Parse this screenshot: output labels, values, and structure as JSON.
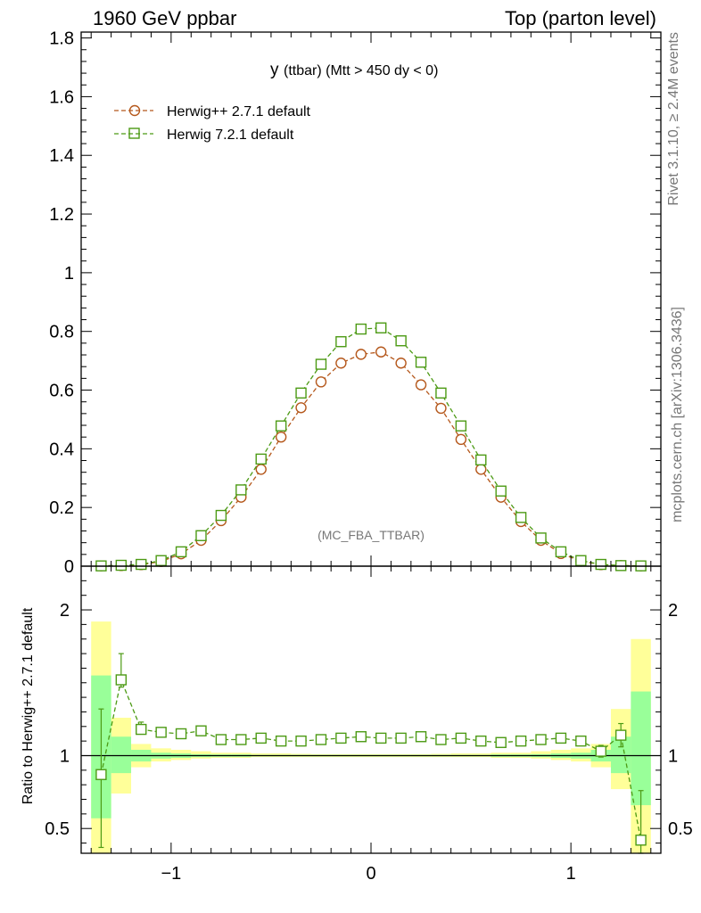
{
  "header": {
    "left": "1960 GeV ppbar",
    "right": "Top (parton level)"
  },
  "side_labels": {
    "rivet": "Rivet 3.1.10, ≥ 2.4M events",
    "mcplots": "mcplots.cern.ch [arXiv:1306.3436]"
  },
  "chart_data": [
    {
      "type": "line",
      "title_main": "y",
      "title_rest": "(ttbar) (Mtt > 450 dy < 0)",
      "watermark": "(MC_FBA_TTBAR)",
      "xlim": [
        -1.45,
        1.45
      ],
      "ylim": [
        0,
        1.82
      ],
      "y_ticks": [
        0.2,
        0.4,
        0.6,
        0.8,
        1,
        1.2,
        1.4,
        1.6,
        1.8
      ],
      "y_tick_labels": [
        "0",
        "0.2",
        "0.4",
        "0.6",
        "0.8",
        "1",
        "1.2",
        "1.4",
        "1.6",
        "1.8"
      ],
      "x": [
        -1.35,
        -1.25,
        -1.15,
        -1.05,
        -0.95,
        -0.85,
        -0.75,
        -0.65,
        -0.55,
        -0.45,
        -0.35,
        -0.25,
        -0.15,
        -0.05,
        0.05,
        0.15,
        0.25,
        0.35,
        0.45,
        0.55,
        0.65,
        0.75,
        0.85,
        0.95,
        1.05,
        1.15,
        1.25,
        1.35
      ],
      "series": [
        {
          "name": "Herwig++ 2.7.1 default",
          "color": "#b5581c",
          "marker": "circle",
          "values": [
            0.001,
            0.002,
            0.005,
            0.016,
            0.042,
            0.088,
            0.155,
            0.235,
            0.33,
            0.44,
            0.54,
            0.628,
            0.692,
            0.722,
            0.73,
            0.692,
            0.618,
            0.538,
            0.432,
            0.33,
            0.235,
            0.152,
            0.088,
            0.043,
            0.017,
            0.005,
            0.002,
            0.001
          ]
        },
        {
          "name": "Herwig 7.2.1 default",
          "color": "#4c9a14",
          "marker": "square",
          "values": [
            0.001,
            0.003,
            0.006,
            0.019,
            0.049,
            0.104,
            0.173,
            0.26,
            0.365,
            0.478,
            0.59,
            0.688,
            0.765,
            0.808,
            0.812,
            0.768,
            0.695,
            0.59,
            0.478,
            0.362,
            0.256,
            0.166,
            0.096,
            0.049,
            0.019,
            0.006,
            0.002,
            0.001
          ]
        }
      ]
    },
    {
      "type": "line",
      "ylabel": "Ratio to Herwig++ 2.7.1 default",
      "xlim": [
        -1.45,
        1.45
      ],
      "ylim": [
        0.33,
        2.3
      ],
      "x_ticks": [
        -1,
        0,
        1
      ],
      "x_tick_labels": [
        "−1",
        "0",
        "1"
      ],
      "y_ticks": [
        0.5,
        1,
        2
      ],
      "y_tick_labels": [
        "0.5",
        "1",
        "2"
      ],
      "bins": [
        -1.4,
        -1.3,
        -1.2,
        -1.1,
        -1.0,
        -0.9,
        -0.8,
        -0.7,
        -0.6,
        -0.5,
        -0.4,
        -0.3,
        -0.2,
        -0.1,
        0.0,
        0.1,
        0.2,
        0.3,
        0.4,
        0.5,
        0.6,
        0.7,
        0.8,
        0.9,
        1.0,
        1.1,
        1.2,
        1.3,
        1.4
      ],
      "band_yellow": [
        [
          0.3,
          1.92
        ],
        [
          0.74,
          1.26
        ],
        [
          0.92,
          1.08
        ],
        [
          0.96,
          1.05
        ],
        [
          0.97,
          1.04
        ],
        [
          0.98,
          1.03
        ],
        [
          0.985,
          1.02
        ],
        [
          0.985,
          1.02
        ],
        [
          0.99,
          1.015
        ],
        [
          0.99,
          1.015
        ],
        [
          0.99,
          1.012
        ],
        [
          0.99,
          1.01
        ],
        [
          0.99,
          1.01
        ],
        [
          0.99,
          1.01
        ],
        [
          0.99,
          1.01
        ],
        [
          0.99,
          1.01
        ],
        [
          0.99,
          1.01
        ],
        [
          0.99,
          1.012
        ],
        [
          0.99,
          1.015
        ],
        [
          0.99,
          1.015
        ],
        [
          0.985,
          1.02
        ],
        [
          0.985,
          1.02
        ],
        [
          0.98,
          1.03
        ],
        [
          0.97,
          1.04
        ],
        [
          0.96,
          1.05
        ],
        [
          0.92,
          1.08
        ],
        [
          0.77,
          1.32
        ],
        [
          0.3,
          1.8
        ]
      ],
      "band_green": [
        [
          0.57,
          1.55
        ],
        [
          0.88,
          1.13
        ],
        [
          0.96,
          1.04
        ],
        [
          0.98,
          1.02
        ],
        [
          0.985,
          1.015
        ],
        [
          0.99,
          1.01
        ],
        [
          0.992,
          1.008
        ],
        [
          0.992,
          1.008
        ],
        [
          0.995,
          1.005
        ],
        [
          0.995,
          1.005
        ],
        [
          0.995,
          1.005
        ],
        [
          0.995,
          1.005
        ],
        [
          0.995,
          1.005
        ],
        [
          0.995,
          1.005
        ],
        [
          0.995,
          1.005
        ],
        [
          0.995,
          1.005
        ],
        [
          0.995,
          1.005
        ],
        [
          0.995,
          1.005
        ],
        [
          0.995,
          1.005
        ],
        [
          0.995,
          1.005
        ],
        [
          0.992,
          1.008
        ],
        [
          0.992,
          1.008
        ],
        [
          0.99,
          1.01
        ],
        [
          0.985,
          1.015
        ],
        [
          0.98,
          1.02
        ],
        [
          0.96,
          1.04
        ],
        [
          0.88,
          1.13
        ],
        [
          0.66,
          1.44
        ]
      ],
      "x": [
        -1.35,
        -1.25,
        -1.15,
        -1.05,
        -0.95,
        -0.85,
        -0.75,
        -0.65,
        -0.55,
        -0.45,
        -0.35,
        -0.25,
        -0.15,
        -0.05,
        0.05,
        0.15,
        0.25,
        0.35,
        0.45,
        0.55,
        0.65,
        0.75,
        0.85,
        0.95,
        1.05,
        1.15,
        1.25,
        1.35
      ],
      "series": [
        {
          "name": "Herwig 7.2.1 default",
          "color": "#4c9a14",
          "marker": "square",
          "values": [
            0.87,
            1.52,
            1.18,
            1.16,
            1.15,
            1.17,
            1.11,
            1.11,
            1.12,
            1.1,
            1.1,
            1.11,
            1.12,
            1.13,
            1.12,
            1.12,
            1.13,
            1.11,
            1.12,
            1.1,
            1.09,
            1.1,
            1.11,
            1.12,
            1.1,
            1.03,
            1.14,
            0.42
          ],
          "err_lo": [
            0.5,
            0.05,
            0.03,
            0.01,
            0.01,
            0.01,
            0.01,
            0.01,
            0.01,
            0.01,
            0.01,
            0.01,
            0.01,
            0.01,
            0.01,
            0.01,
            0.01,
            0.01,
            0.01,
            0.01,
            0.01,
            0.01,
            0.01,
            0.01,
            0.01,
            0.04,
            0.08,
            0.09
          ],
          "err_hi": [
            0.45,
            0.18,
            0.05,
            0.01,
            0.01,
            0.01,
            0.01,
            0.01,
            0.01,
            0.01,
            0.01,
            0.01,
            0.01,
            0.01,
            0.01,
            0.01,
            0.01,
            0.01,
            0.01,
            0.01,
            0.01,
            0.01,
            0.01,
            0.01,
            0.01,
            0.04,
            0.08,
            0.34
          ]
        }
      ]
    }
  ]
}
